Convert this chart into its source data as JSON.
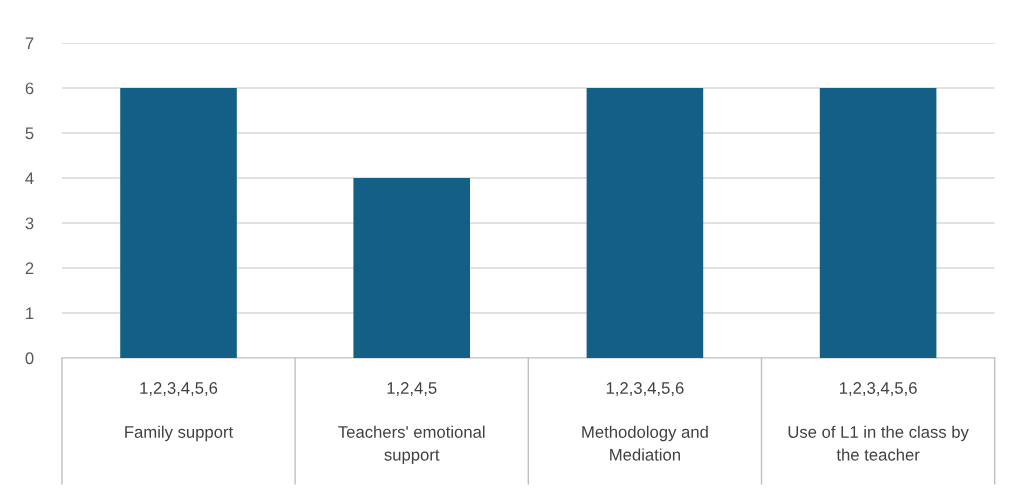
{
  "chart_data": {
    "type": "bar",
    "categories": [
      "1,2,3,4,5,6\nFamily support",
      "1,2,4,5\nTeachers' emotional\nsupport",
      "1,2,3,4,5,6\nMethodology and\nMediation",
      "1,2,3,4,5,6\nUse of L1 in the class by\nthe teacher"
    ],
    "values": [
      6,
      4,
      6,
      6
    ],
    "color": "#135f86",
    "ylim": [
      0,
      7
    ],
    "yticks": [
      0,
      1,
      2,
      3,
      4,
      5,
      6,
      7
    ],
    "grid": "y",
    "legend": false
  }
}
